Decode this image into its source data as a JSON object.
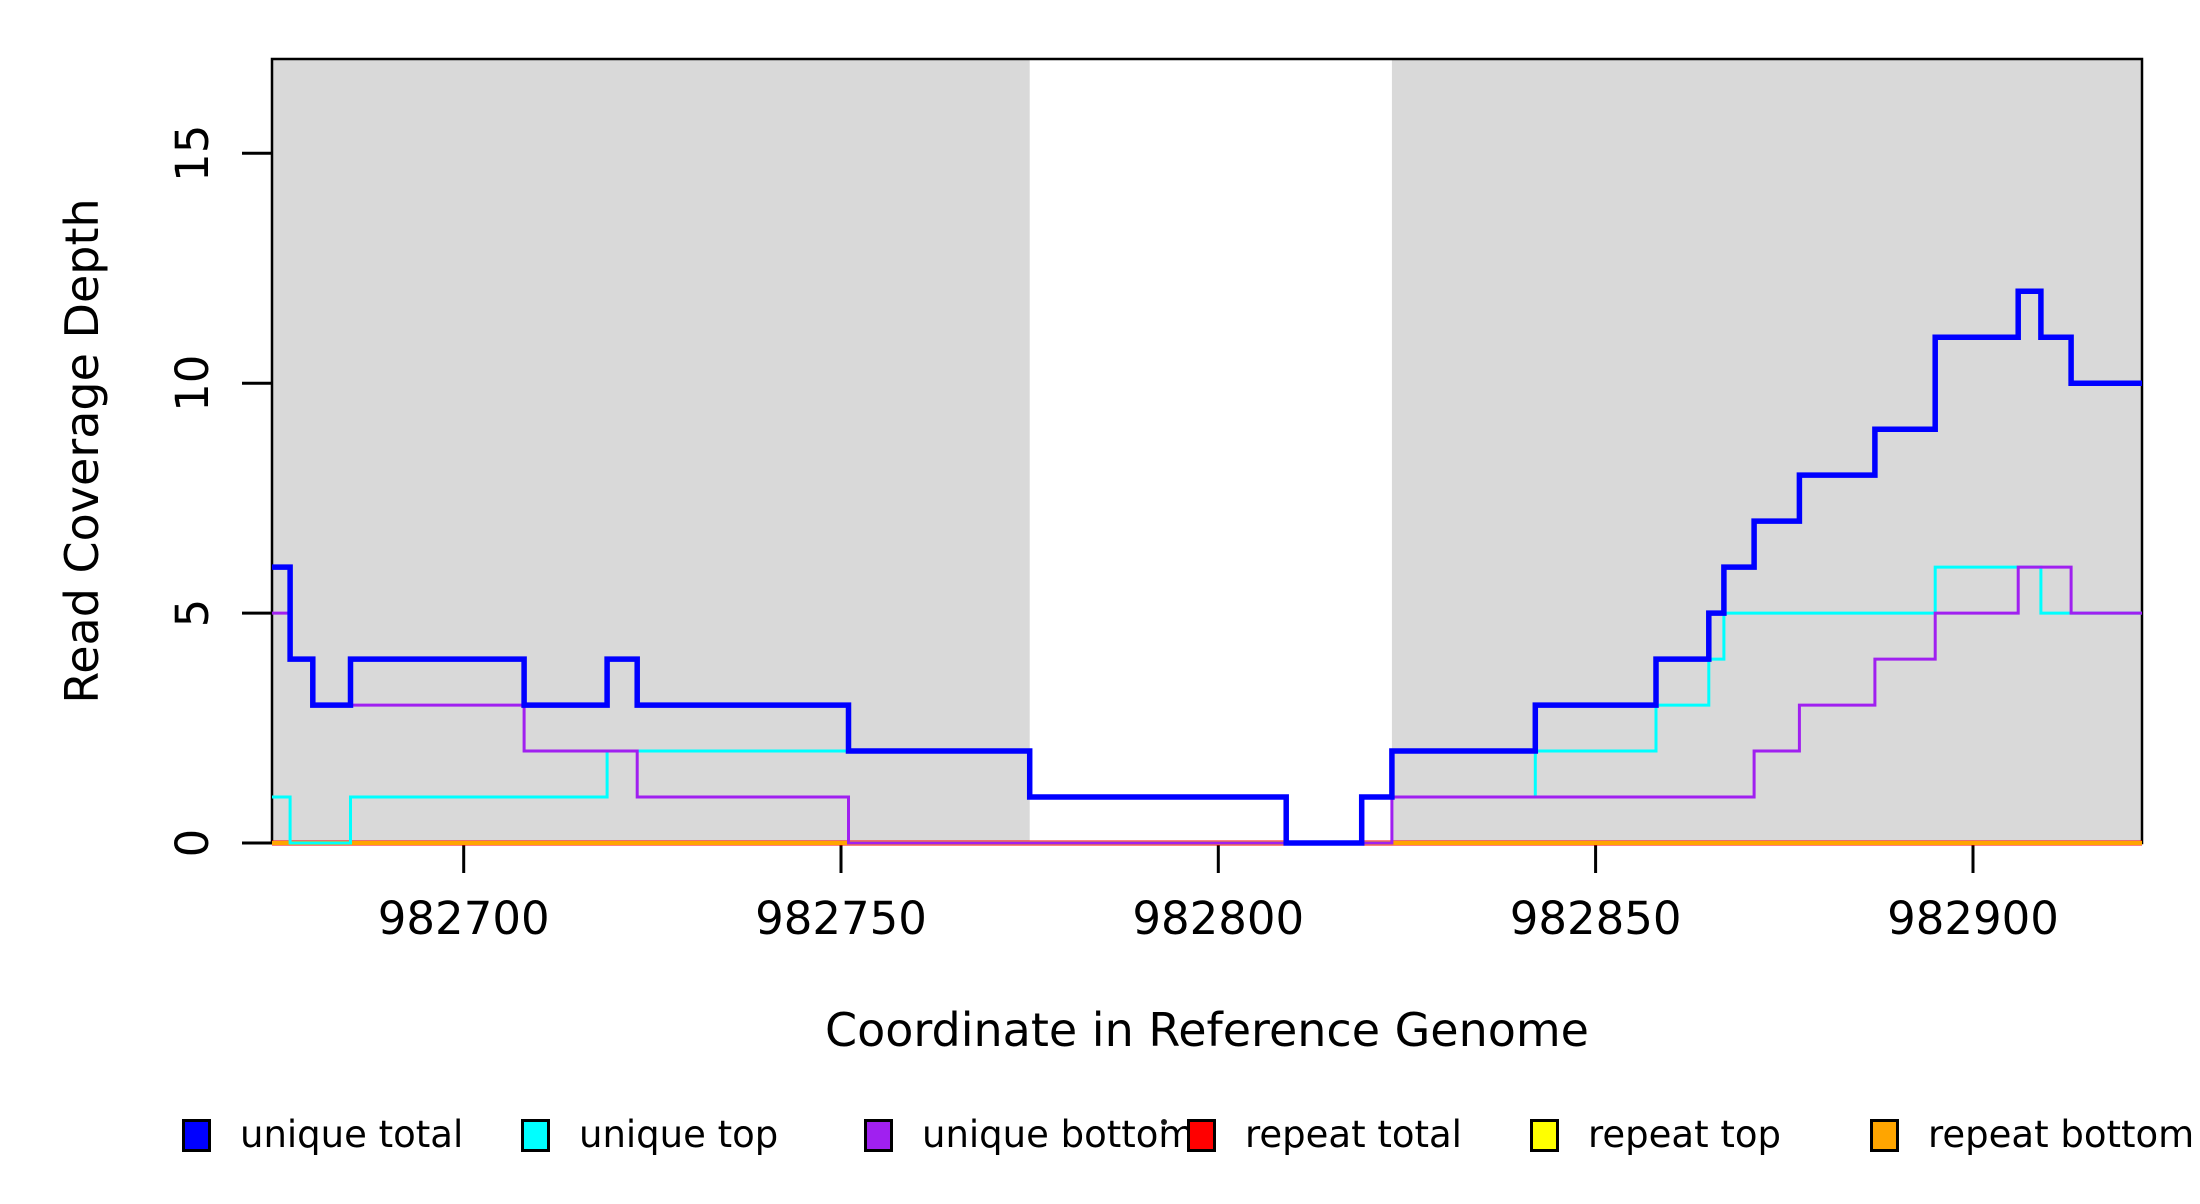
{
  "chart_data": {
    "type": "line",
    "subtype": "step",
    "title": "",
    "xlabel": "Coordinate in Reference Genome",
    "ylabel": "Read Coverage Depth",
    "xlim": [
      982674.6,
      982922.4
    ],
    "ylim": [
      0,
      17.05
    ],
    "x_ticks": [
      982700,
      982750,
      982800,
      982850,
      982900
    ],
    "y_ticks": [
      0,
      5,
      10,
      15
    ],
    "grid": false,
    "background": "#ffffff",
    "shade_color": "#d9d9d9",
    "shaded_regions": [
      [
        982674.6,
        982775
      ],
      [
        982823,
        982922.4
      ]
    ],
    "series": [
      {
        "name": "repeat total",
        "color": "#ff0000",
        "lwd": 5,
        "steps": [
          [
            982675,
            0
          ]
        ]
      },
      {
        "name": "repeat top",
        "color": "#ffff00",
        "lwd": 4,
        "steps": [
          [
            982675,
            0
          ]
        ]
      },
      {
        "name": "repeat bottom",
        "color": "#ffa500",
        "lwd": 4,
        "steps": [
          [
            982675,
            0
          ]
        ]
      },
      {
        "name": "unique top",
        "color": "#00ffff",
        "lwd": 3,
        "steps": [
          [
            982675,
            1
          ],
          [
            982677,
            0
          ],
          [
            982685,
            1
          ],
          [
            982719,
            2
          ],
          [
            982775,
            1
          ],
          [
            982809,
            0
          ],
          [
            982819,
            1
          ],
          [
            982842,
            2
          ],
          [
            982858,
            3
          ],
          [
            982865,
            4
          ],
          [
            982867,
            5
          ],
          [
            982895,
            6
          ],
          [
            982909,
            5
          ]
        ]
      },
      {
        "name": "unique bottom",
        "color": "#a020f0",
        "lwd": 3,
        "steps": [
          [
            982675,
            5
          ],
          [
            982677,
            4
          ],
          [
            982680,
            3
          ],
          [
            982708,
            2
          ],
          [
            982723,
            1
          ],
          [
            982751,
            0
          ],
          [
            982823,
            1
          ],
          [
            982871,
            2
          ],
          [
            982877,
            3
          ],
          [
            982887,
            4
          ],
          [
            982895,
            5
          ],
          [
            982906,
            6
          ],
          [
            982913,
            5
          ]
        ]
      },
      {
        "name": "unique total",
        "color": "#0000ff",
        "lwd": 5.5,
        "steps": [
          [
            982675,
            6
          ],
          [
            982677,
            4
          ],
          [
            982680,
            3
          ],
          [
            982685,
            4
          ],
          [
            982708,
            3
          ],
          [
            982719,
            4
          ],
          [
            982723,
            3
          ],
          [
            982751,
            2
          ],
          [
            982775,
            1
          ],
          [
            982809,
            0
          ],
          [
            982819,
            1
          ],
          [
            982823,
            2
          ],
          [
            982842,
            3
          ],
          [
            982858,
            4
          ],
          [
            982865,
            5
          ],
          [
            982867,
            6
          ],
          [
            982871,
            7
          ],
          [
            982877,
            8
          ],
          [
            982887,
            9
          ],
          [
            982895,
            11
          ],
          [
            982906,
            12
          ],
          [
            982909,
            11
          ],
          [
            982913,
            10
          ]
        ]
      }
    ]
  },
  "legend": {
    "position": "bottom",
    "items": [
      {
        "label": "unique total",
        "color": "#0000ff"
      },
      {
        "label": "unique top",
        "color": "#00ffff"
      },
      {
        "label": "unique bottom",
        "color": "#a020f0"
      },
      {
        "label": "repeat total",
        "color": "#ff0000"
      },
      {
        "label": "repeat top",
        "color": "#ffff00"
      },
      {
        "label": "repeat bottom",
        "color": "#ffa500"
      }
    ]
  }
}
